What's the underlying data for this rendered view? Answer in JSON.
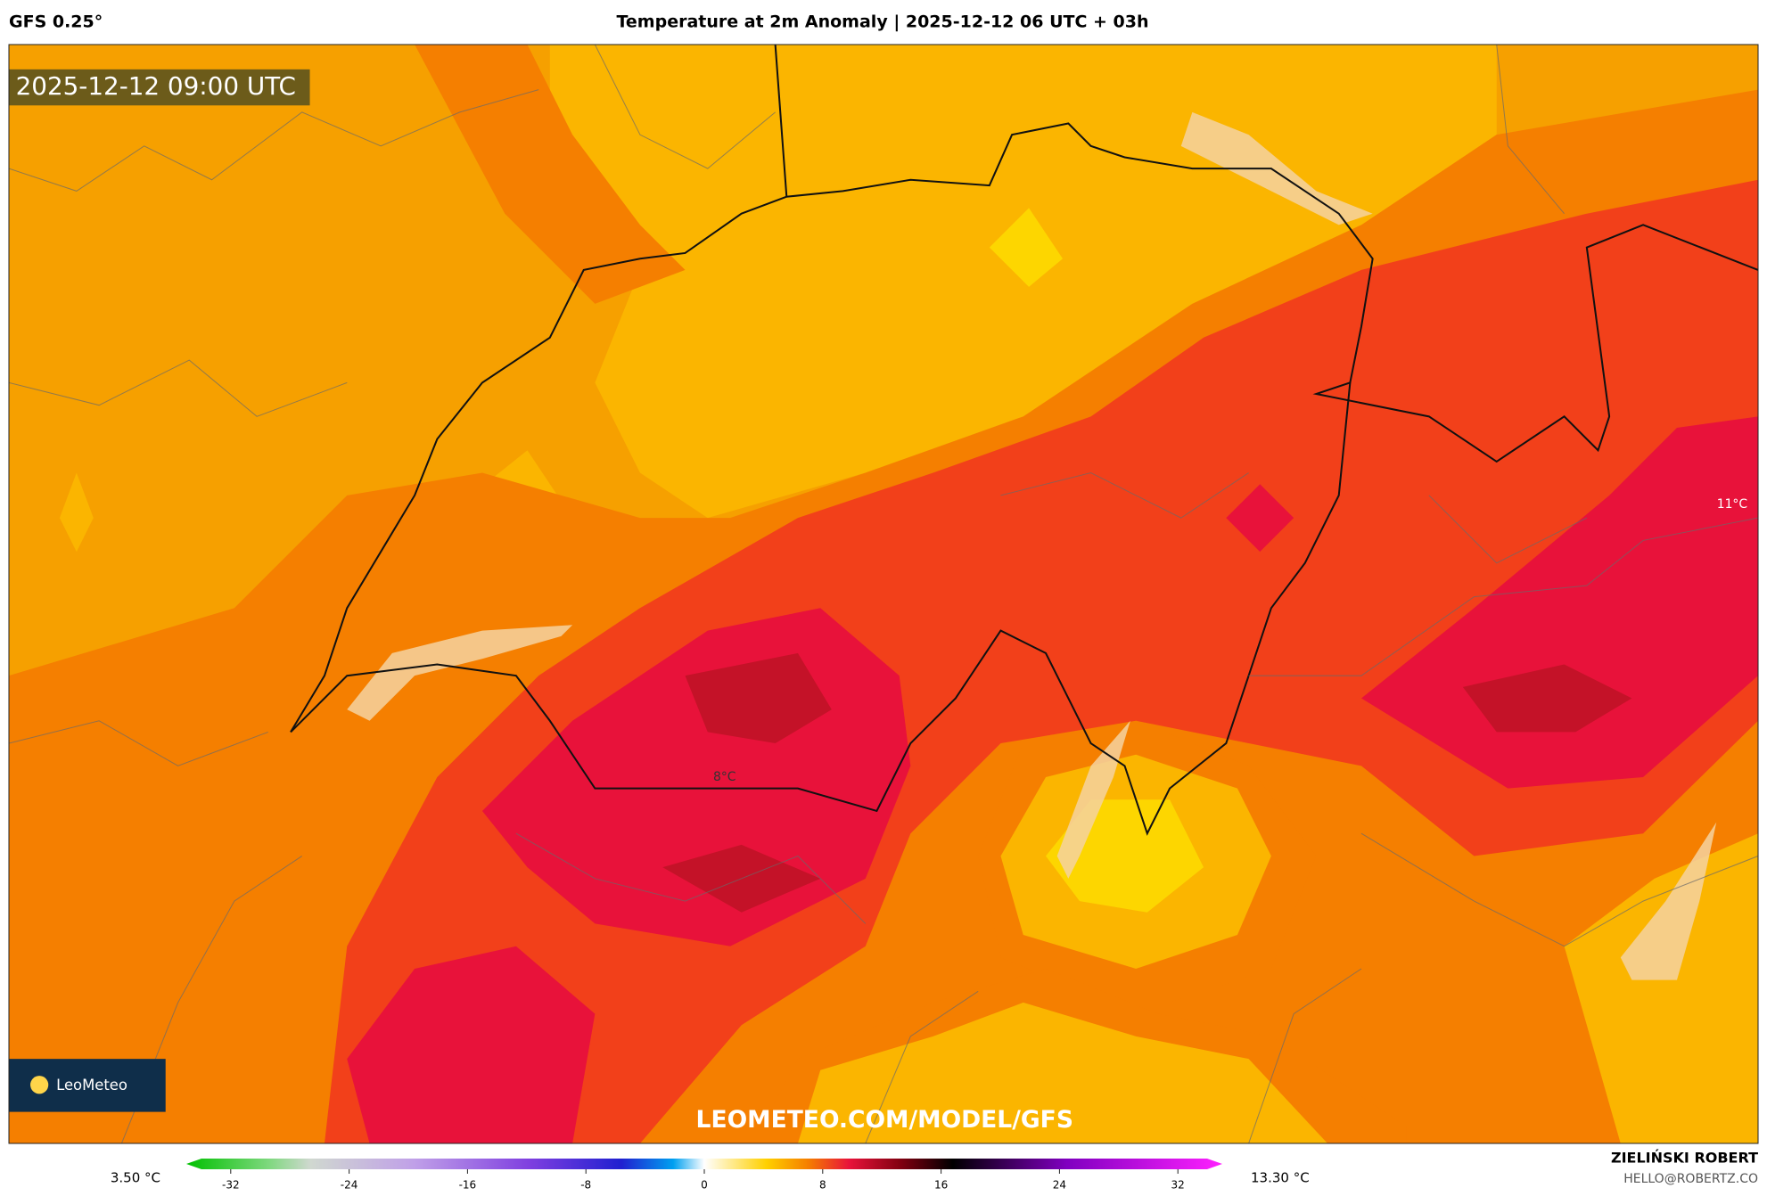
{
  "header": {
    "model": "GFS 0.25°",
    "title": "Temperature at 2m Anomaly | 2025-12-12 06 UTC + 03h"
  },
  "map": {
    "timestamp": "2025-12-12 09:00 UTC",
    "labels": [
      "8°C",
      "11°C"
    ],
    "watermark": "LEOMETEO.COM/MODEL/GFS",
    "logo": "LeoMeteo"
  },
  "colorbar": {
    "min_label": "3.50 °C",
    "max_label": "13.30 °C",
    "range": [
      -35,
      35
    ],
    "ticks": [
      -32,
      -24,
      -16,
      -8,
      0,
      8,
      16,
      24,
      32
    ]
  },
  "footer": {
    "author": "ZIELIŃSKI ROBERT",
    "email": "HELLO@ROBERTZ.CO"
  }
}
